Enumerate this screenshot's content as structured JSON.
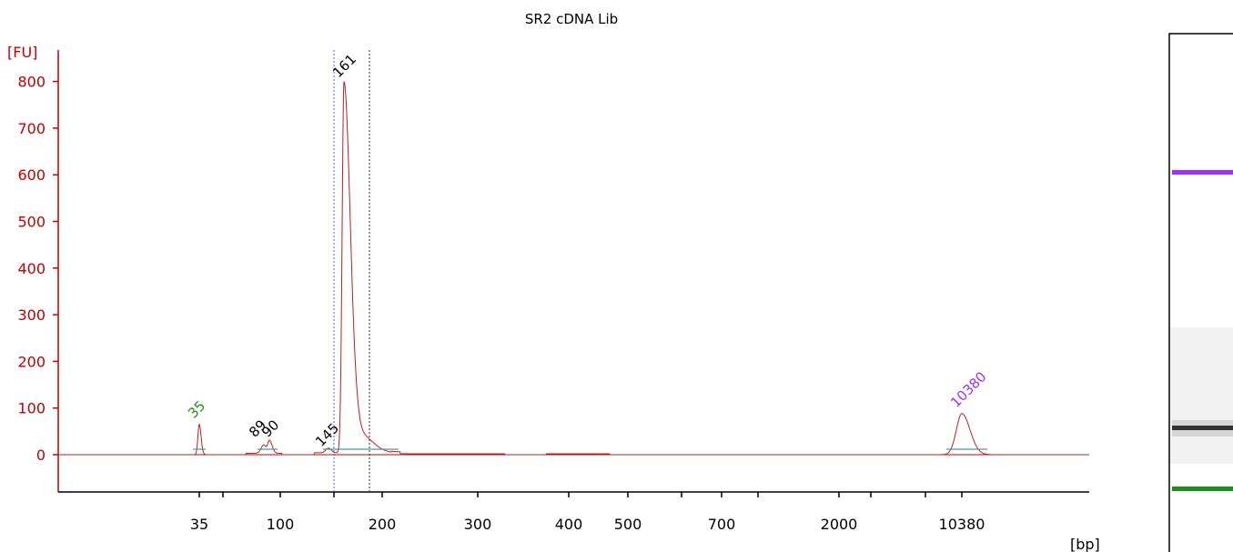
{
  "title": "SR2 cDNA Lib",
  "y_unit": "[FU]",
  "x_unit": "[bp]",
  "colors": {
    "axis_y": "#cc0000",
    "axis_x": "#000000",
    "trace": "#b22222",
    "lower_marker": "#228b22",
    "upper_marker": "#9b30ff",
    "region_line": "#4169e1",
    "baseline": "#4a9a9a",
    "gel_lane_band": "#333333"
  },
  "chart_data": {
    "type": "line",
    "title": "SR2 cDNA Lib",
    "xlabel": "[bp]",
    "ylabel": "[FU]",
    "ylim": [
      -80,
      860
    ],
    "yticks": [
      0,
      100,
      200,
      300,
      400,
      500,
      600,
      700,
      800
    ],
    "x_tick_labels": [
      "35",
      "",
      "100",
      "",
      "200",
      "300",
      "400",
      "500",
      "",
      "700",
      "",
      "2000",
      "",
      "10380"
    ],
    "peaks": [
      {
        "label": "35",
        "size_bp": 35,
        "fu": 65,
        "color": "lower_marker"
      },
      {
        "label": "89",
        "size_bp": 89,
        "fu": 18,
        "color": "black"
      },
      {
        "label": "90",
        "size_bp": 90,
        "fu": 28,
        "color": "black"
      },
      {
        "label": "145",
        "size_bp": 145,
        "fu": 12,
        "color": "black"
      },
      {
        "label": "161",
        "size_bp": 161,
        "fu": 795,
        "color": "black"
      },
      {
        "label": "10380",
        "size_bp": 10380,
        "fu": 88,
        "color": "upper_marker"
      }
    ],
    "series": [
      {
        "values": [
          [
            35,
            0
          ],
          [
            35,
            65
          ],
          [
            35,
            0
          ],
          [
            89,
            18
          ],
          [
            90,
            28
          ],
          [
            100,
            0
          ],
          [
            145,
            12
          ],
          [
            161,
            795
          ],
          [
            200,
            5
          ],
          [
            300,
            2
          ],
          [
            400,
            3
          ],
          [
            10380,
            88
          ]
        ]
      }
    ],
    "region": {
      "from_bp": 145,
      "to_bp": 200
    }
  }
}
